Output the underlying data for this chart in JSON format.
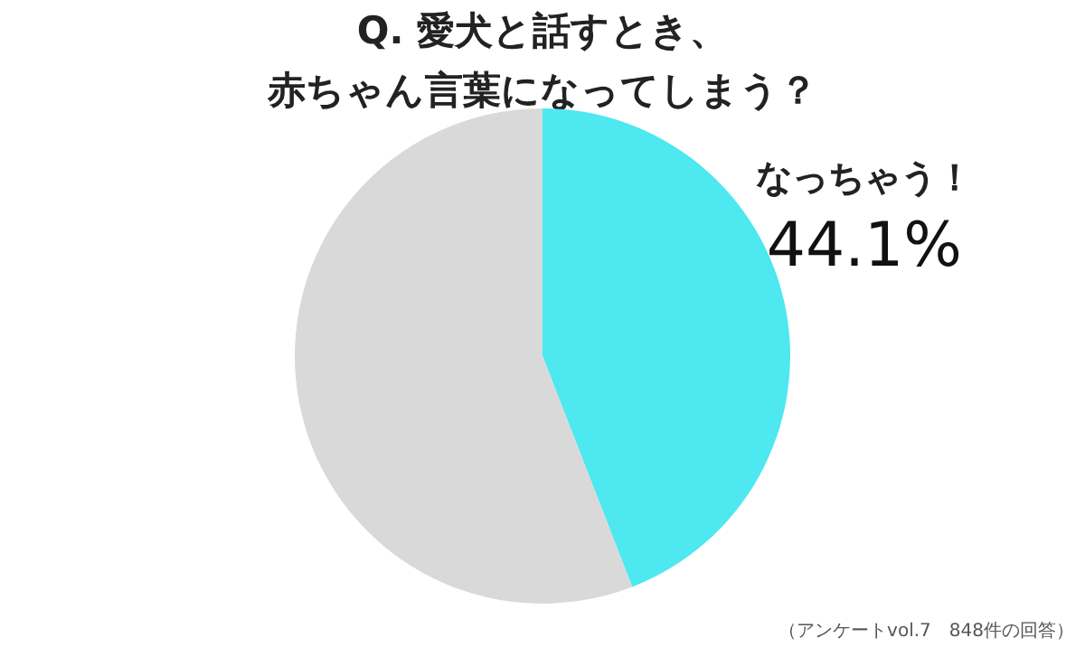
{
  "chart_data": {
    "type": "pie",
    "title": "Q.  愛犬と話すとき、赤ちゃん言葉になってしまう？",
    "categories": [
      "なっちゃう！",
      null
    ],
    "values": [
      44.1,
      55.9
    ],
    "colors": [
      "#4de8f0",
      "#d9d9d9"
    ],
    "value_labels": [
      "44.1%",
      null
    ],
    "annotations": [
      "（アンケートvol.7　848件の回答）"
    ]
  }
}
